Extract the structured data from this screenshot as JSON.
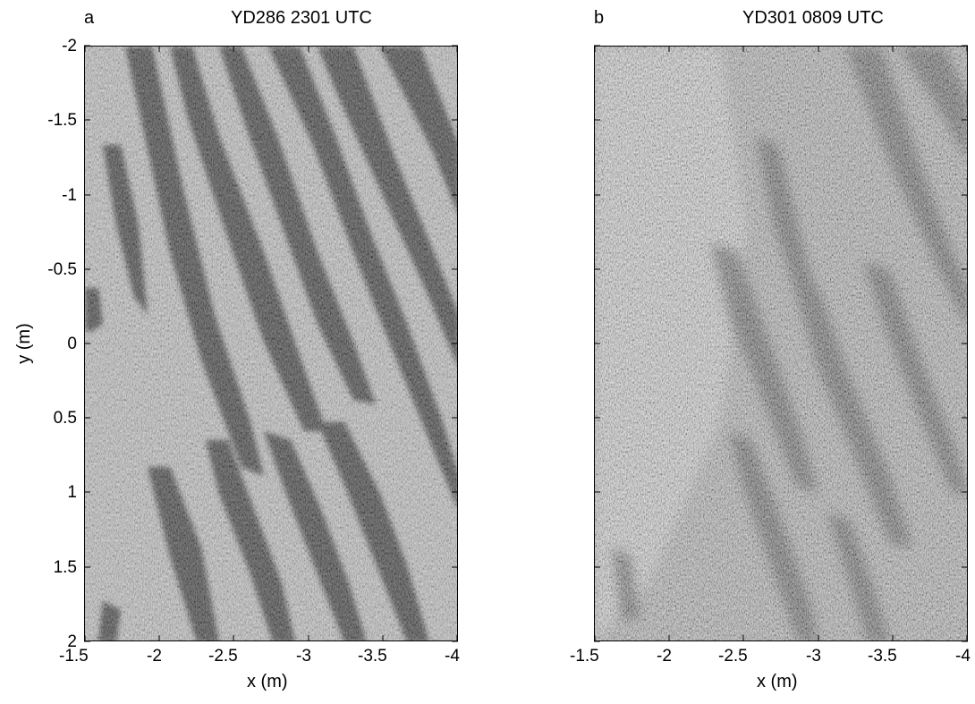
{
  "panels": [
    {
      "letter": "a",
      "title": "YD286   2301 UTC",
      "xlabel": "x (m)",
      "ylabel": "y (m)",
      "xticks": [
        "-1.5",
        "-2",
        "-2.5",
        "-3",
        "-3.5",
        "-4"
      ],
      "yticks": [
        "-2",
        "-1.5",
        "-1",
        "-0.5",
        "0",
        "0.5",
        "1",
        "1.5",
        "2"
      ]
    },
    {
      "letter": "b",
      "title": "YD301   0809 UTC",
      "xlabel": "x (m)",
      "xticks": [
        "-1.5",
        "-2",
        "-2.5",
        "-3",
        "-3.5",
        "-4"
      ]
    }
  ]
}
